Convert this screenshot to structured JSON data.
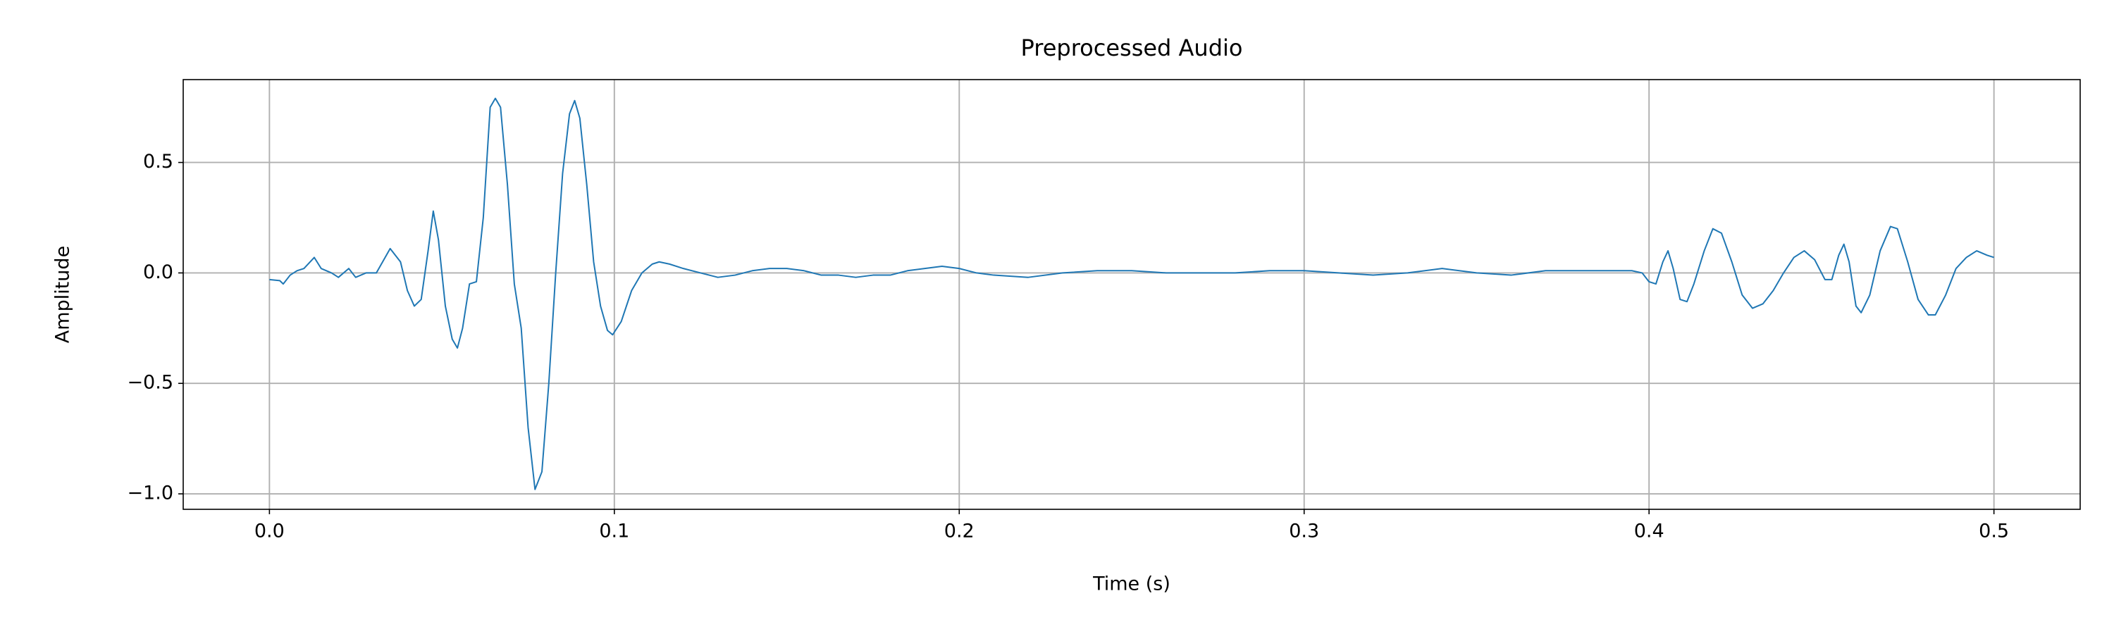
{
  "chart_data": {
    "type": "line",
    "title": "Preprocessed Audio",
    "xlabel": "Time (s)",
    "ylabel": "Amplitude",
    "color": "#1f77b4",
    "grid": true,
    "xlim": [
      -0.025,
      0.525
    ],
    "ylim": [
      -1.07,
      0.875
    ],
    "xticks": [
      {
        "value": 0,
        "label": "0.0"
      },
      0.1,
      0.2,
      0.3,
      0.4,
      0.5
    ],
    "yticks": [
      {
        "value": -1,
        "label": "−1.0"
      },
      {
        "value": -0.5,
        "label": "−0.5"
      },
      {
        "value": 0,
        "label": "0.0"
      },
      0.5
    ],
    "x": [
      0.0,
      0.003,
      0.004,
      0.006,
      0.008,
      0.01,
      0.013,
      0.015,
      0.018,
      0.02,
      0.023,
      0.025,
      0.028,
      0.031,
      0.035,
      0.038,
      0.04,
      0.042,
      0.044,
      0.046,
      0.0475,
      0.049,
      0.051,
      0.053,
      0.0545,
      0.056,
      0.058,
      0.06,
      0.062,
      0.064,
      0.0655,
      0.067,
      0.069,
      0.071,
      0.073,
      0.075,
      0.077,
      0.079,
      0.081,
      0.083,
      0.085,
      0.087,
      0.0885,
      0.09,
      0.092,
      0.094,
      0.096,
      0.098,
      0.0995,
      0.102,
      0.105,
      0.108,
      0.111,
      0.113,
      0.116,
      0.12,
      0.125,
      0.13,
      0.135,
      0.14,
      0.145,
      0.15,
      0.155,
      0.16,
      0.165,
      0.17,
      0.175,
      0.18,
      0.185,
      0.19,
      0.195,
      0.2,
      0.205,
      0.21,
      0.22,
      0.23,
      0.24,
      0.25,
      0.26,
      0.27,
      0.28,
      0.29,
      0.3,
      0.31,
      0.32,
      0.33,
      0.34,
      0.35,
      0.36,
      0.37,
      0.38,
      0.39,
      0.395,
      0.398,
      0.4,
      0.402,
      0.404,
      0.4055,
      0.407,
      0.409,
      0.411,
      0.413,
      0.416,
      0.4185,
      0.421,
      0.424,
      0.427,
      0.43,
      0.433,
      0.436,
      0.439,
      0.442,
      0.445,
      0.448,
      0.451,
      0.453,
      0.455,
      0.4565,
      0.458,
      0.46,
      0.4615,
      0.464,
      0.467,
      0.47,
      0.472,
      0.475,
      0.478,
      0.481,
      0.483,
      0.486,
      0.489,
      0.492,
      0.495,
      0.498,
      0.5
    ],
    "values": [
      -0.03,
      -0.035,
      -0.05,
      -0.01,
      0.01,
      0.02,
      0.07,
      0.02,
      0.0,
      -0.02,
      0.02,
      -0.02,
      0.0,
      0.0,
      0.11,
      0.05,
      -0.08,
      -0.15,
      -0.12,
      0.1,
      0.28,
      0.15,
      -0.15,
      -0.3,
      -0.34,
      -0.25,
      -0.05,
      -0.04,
      0.25,
      0.75,
      0.79,
      0.75,
      0.4,
      -0.05,
      -0.25,
      -0.7,
      -0.98,
      -0.9,
      -0.5,
      0.0,
      0.45,
      0.72,
      0.78,
      0.7,
      0.4,
      0.05,
      -0.15,
      -0.26,
      -0.28,
      -0.22,
      -0.08,
      0.0,
      0.04,
      0.05,
      0.04,
      0.02,
      0.0,
      -0.02,
      -0.01,
      0.01,
      0.02,
      0.02,
      0.01,
      -0.01,
      -0.01,
      -0.02,
      -0.01,
      -0.01,
      0.01,
      0.02,
      0.03,
      0.02,
      0.0,
      -0.01,
      -0.02,
      0.0,
      0.01,
      0.01,
      0.0,
      0.0,
      0.0,
      0.01,
      0.01,
      0.0,
      -0.01,
      0.0,
      0.02,
      0.0,
      -0.01,
      0.01,
      0.01,
      0.01,
      0.01,
      0.0,
      -0.04,
      -0.05,
      0.05,
      0.1,
      0.02,
      -0.12,
      -0.13,
      -0.05,
      0.1,
      0.2,
      0.18,
      0.05,
      -0.1,
      -0.16,
      -0.14,
      -0.08,
      0.0,
      0.07,
      0.1,
      0.06,
      -0.03,
      -0.03,
      0.08,
      0.13,
      0.05,
      -0.15,
      -0.18,
      -0.1,
      0.1,
      0.21,
      0.2,
      0.05,
      -0.12,
      -0.19,
      -0.19,
      -0.1,
      0.02,
      0.07,
      0.1,
      0.08,
      0.07
    ]
  }
}
